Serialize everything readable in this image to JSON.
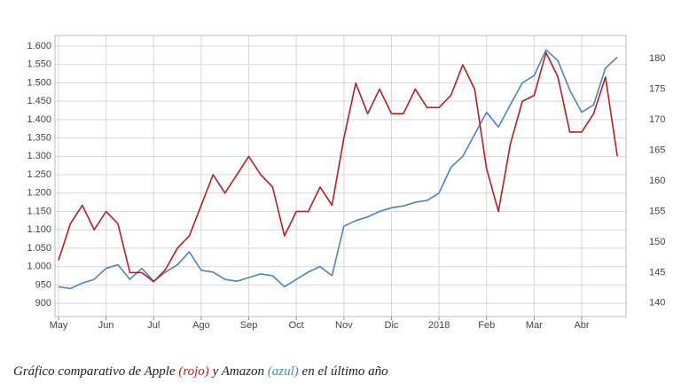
{
  "chart_data": {
    "type": "line",
    "categories": [
      "May",
      null,
      null,
      null,
      "Jun",
      null,
      null,
      null,
      "Jul",
      null,
      null,
      null,
      "Ago",
      null,
      null,
      null,
      "Sep",
      null,
      null,
      null,
      "Oct",
      null,
      null,
      null,
      "Nov",
      null,
      null,
      null,
      "Dic",
      null,
      null,
      null,
      "2018",
      null,
      null,
      null,
      "Feb",
      null,
      null,
      null,
      "Mar",
      null,
      null,
      null,
      "Abr",
      null,
      null,
      null
    ],
    "series": [
      {
        "color": "#4a86c0",
        "values": [
          945,
          940,
          955,
          965,
          995,
          1005,
          965,
          995,
          960,
          985,
          1005,
          1040,
          990,
          985,
          965,
          960,
          970,
          980,
          975,
          945,
          965,
          985,
          1000,
          975,
          1110,
          1125,
          1135,
          1150,
          1160,
          1165,
          1175,
          1180,
          1200,
          1270,
          1300,
          1360,
          1420,
          1380,
          1440,
          1500,
          1520,
          1590,
          1560,
          1480,
          1420,
          1440,
          1540,
          1570
        ]
      },
      {
        "color": "#b52025",
        "axis": "y2",
        "values": [
          147,
          153,
          156,
          152,
          155,
          153,
          145,
          145,
          143.5,
          145.5,
          149,
          151,
          156,
          161,
          158,
          161,
          164,
          161,
          159,
          151,
          155,
          155,
          159,
          156,
          167,
          176,
          171,
          175,
          171,
          171,
          175,
          172,
          172,
          174,
          179,
          175,
          162,
          155,
          166,
          173,
          174,
          181,
          177,
          168,
          168,
          171,
          177,
          164
        ]
      }
    ],
    "ylim": [
      864,
      1629
    ],
    "yticks": [
      900,
      950,
      {
        "value": 1000,
        "label": "1.000"
      },
      {
        "value": 1050,
        "label": "1.050"
      },
      {
        "value": 1100,
        "label": "1.100"
      },
      {
        "value": 1150,
        "label": "1.150"
      },
      {
        "value": 1200,
        "label": "1.200"
      },
      {
        "value": 1250,
        "label": "1.250"
      },
      {
        "value": 1300,
        "label": "1.300"
      },
      {
        "value": 1350,
        "label": "1.350"
      },
      {
        "value": 1400,
        "label": "1.400"
      },
      {
        "value": 1450,
        "label": "1.450"
      },
      {
        "value": 1500,
        "label": "1.500"
      },
      {
        "value": 1550,
        "label": "1.550"
      },
      {
        "value": 1600,
        "label": "1.600"
      }
    ],
    "y2lim": [
      137.8,
      183.8
    ],
    "y2ticks": [
      140,
      145,
      150,
      155,
      160,
      165,
      170,
      175,
      180
    ],
    "grid": true,
    "caption": {
      "parts": [
        "Gráfico comparativo de Apple ",
        "(rojo)",
        " y Amazon ",
        "(azul)",
        " en el último año"
      ],
      "colors": [
        null,
        "#b52025",
        null,
        "#4a86c0",
        null
      ]
    }
  }
}
